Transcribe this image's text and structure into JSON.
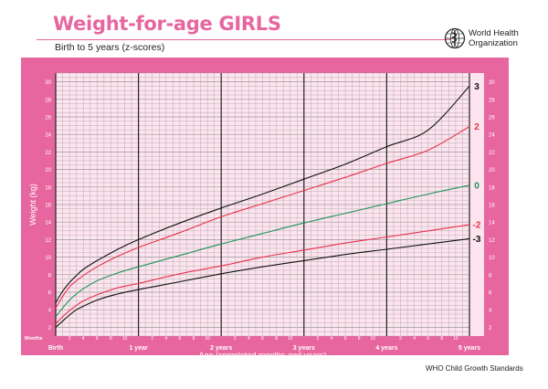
{
  "title": "Weight-for-age GIRLS",
  "subtitle": "Birth to 5 years (z-scores)",
  "organization": {
    "line1": "World Health",
    "line2": "Organization",
    "icon": "who-emblem-icon"
  },
  "footer": "WHO Child Growth Standards",
  "colors": {
    "frame": "#e7669f",
    "plot_bg": "#fde4ef",
    "grid": "#9a9a9a",
    "major_grid": "#222222",
    "z3": "#111111",
    "z2": "#e8304a",
    "z0": "#1d9455",
    "zm2": "#e8304a",
    "zm3": "#111111"
  },
  "chart_data": {
    "type": "line",
    "title": "Weight-for-age GIRLS",
    "subtitle": "Birth to 5 years (z-scores)",
    "xlabel": "Age (completed months and years)",
    "ylabel": "Weight (kg)",
    "x_unit_label": "Months",
    "xlim": [
      0,
      60
    ],
    "ylim": [
      1,
      31
    ],
    "grid": true,
    "y_ticks": [
      2,
      4,
      6,
      8,
      10,
      12,
      14,
      16,
      18,
      20,
      22,
      24,
      26,
      28,
      30
    ],
    "year_ticks": [
      {
        "month": 0,
        "label": "Birth"
      },
      {
        "month": 12,
        "label": "1 year"
      },
      {
        "month": 24,
        "label": "2 years"
      },
      {
        "month": 36,
        "label": "3 years"
      },
      {
        "month": 48,
        "label": "4 years"
      },
      {
        "month": 60,
        "label": "5 years"
      }
    ],
    "month_labels": [
      2,
      4,
      6,
      8,
      10
    ],
    "x": [
      0,
      1,
      2,
      3,
      4,
      6,
      9,
      12,
      18,
      24,
      30,
      36,
      42,
      48,
      54,
      60
    ],
    "series": [
      {
        "name": "3",
        "key": "z3",
        "values": [
          4.8,
          6.1,
          7.1,
          7.9,
          8.6,
          9.6,
          10.9,
          12.0,
          13.9,
          15.6,
          17.2,
          18.9,
          20.6,
          22.6,
          24.5,
          29.5
        ]
      },
      {
        "name": "2",
        "key": "z2",
        "values": [
          4.2,
          5.5,
          6.6,
          7.3,
          7.9,
          8.9,
          10.1,
          11.1,
          12.8,
          14.6,
          16.1,
          17.6,
          19.1,
          20.7,
          22.2,
          24.9
        ]
      },
      {
        "name": "0",
        "key": "z0",
        "values": [
          3.2,
          4.2,
          5.1,
          5.8,
          6.4,
          7.3,
          8.2,
          8.9,
          10.2,
          11.5,
          12.7,
          13.9,
          15.0,
          16.1,
          17.2,
          18.2
        ]
      },
      {
        "name": "-2",
        "key": "zm2",
        "values": [
          2.4,
          3.2,
          3.9,
          4.5,
          5.0,
          5.7,
          6.5,
          7.0,
          8.1,
          9.0,
          10.0,
          10.8,
          11.6,
          12.3,
          13.0,
          13.7
        ]
      },
      {
        "name": "-3",
        "key": "zm3",
        "values": [
          2.0,
          2.7,
          3.4,
          4.0,
          4.4,
          5.1,
          5.8,
          6.3,
          7.2,
          8.1,
          8.9,
          9.6,
          10.3,
          10.9,
          11.5,
          12.1
        ]
      }
    ]
  }
}
